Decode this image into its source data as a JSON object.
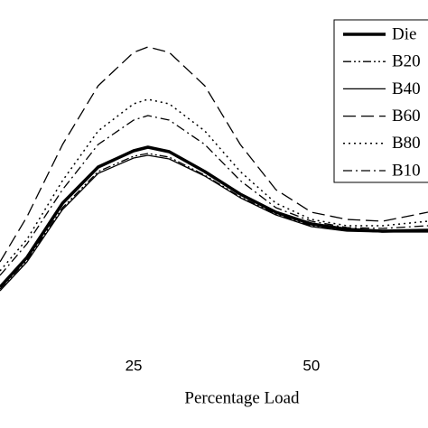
{
  "chart_data": {
    "type": "line",
    "x_label": "Percentage Load",
    "x": [
      6.2,
      10,
      15,
      20,
      25,
      27,
      30,
      35,
      40,
      45,
      50,
      55,
      60,
      66.4
    ],
    "xlim": [
      6.2,
      66.4
    ],
    "xticks": [
      25,
      50
    ],
    "ylim": [
      0,
      370
    ],
    "legend": "upper right",
    "series": [
      {
        "name": "Die",
        "color": "#000000",
        "width": 3.5,
        "dash": "",
        "values": [
          52,
          85,
          145,
          185,
          203,
          207,
          202,
          180,
          155,
          135,
          122,
          116,
          114,
          115
        ]
      },
      {
        "name": "B20",
        "color": "#000000",
        "width": 1.3,
        "dash": "9 3 2 3 2 3",
        "values": [
          50,
          82,
          140,
          180,
          197,
          200,
          196,
          176,
          152,
          133,
          120,
          115,
          113,
          114
        ]
      },
      {
        "name": "B40",
        "color": "#000000",
        "width": 1.3,
        "dash": "",
        "values": [
          48,
          80,
          138,
          178,
          195,
          198,
          194,
          175,
          151,
          132,
          119,
          114,
          113,
          113
        ]
      },
      {
        "name": "B60",
        "color": "#000000",
        "width": 1.3,
        "dash": "14 6",
        "values": [
          80,
          130,
          210,
          275,
          312,
          318,
          312,
          275,
          210,
          160,
          135,
          127,
          125,
          135
        ]
      },
      {
        "name": "B80",
        "color": "#000000",
        "width": 1.5,
        "dash": "2 4",
        "values": [
          70,
          105,
          170,
          225,
          255,
          260,
          255,
          225,
          180,
          145,
          127,
          120,
          120,
          125
        ]
      },
      {
        "name": "B10",
        "color": "#000000",
        "width": 1.3,
        "dash": "10 4 2 4",
        "values": [
          65,
          100,
          160,
          210,
          237,
          242,
          237,
          210,
          170,
          140,
          125,
          118,
          117,
          120
        ]
      }
    ]
  }
}
